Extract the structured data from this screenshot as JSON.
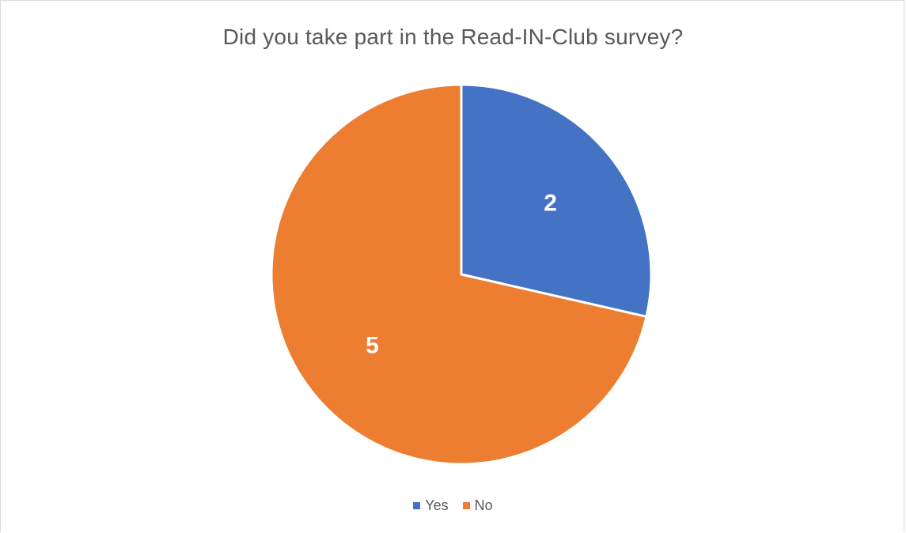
{
  "chart_data": {
    "type": "pie",
    "title": "Did you take part in the Read-IN-Club survey?",
    "categories": [
      "Yes",
      "No"
    ],
    "values": [
      2,
      5
    ],
    "colors": [
      "#4472C4",
      "#ED7D31"
    ],
    "data_labels": [
      "2",
      "5"
    ],
    "legend_position": "bottom",
    "start_angle_deg": 0,
    "direction": "clockwise"
  }
}
